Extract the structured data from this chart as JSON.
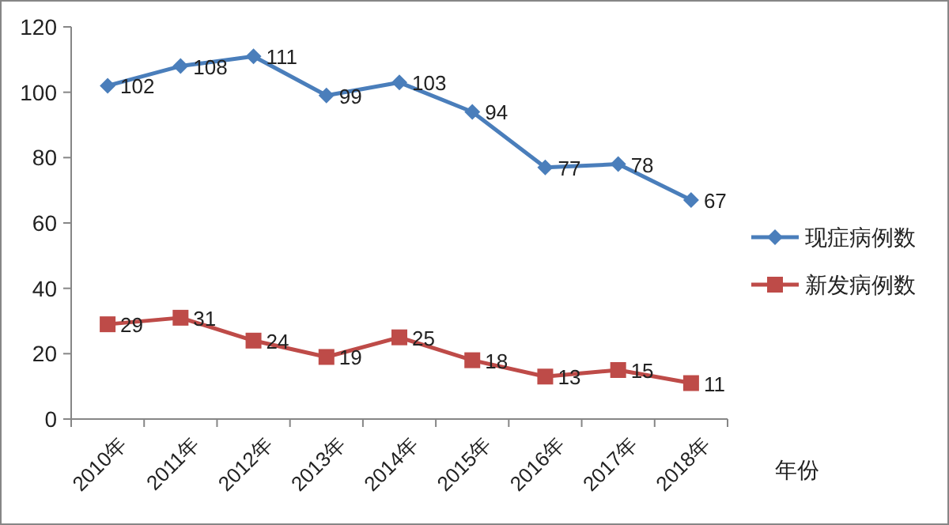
{
  "chart_data": {
    "type": "line",
    "xlabel": "年份",
    "categories": [
      "2010年",
      "2011年",
      "2012年",
      "2013年",
      "2014年",
      "2015年",
      "2016年",
      "2017年",
      "2018年"
    ],
    "series": [
      {
        "name": "现症病例数",
        "color": "#4a7ebb",
        "marker": "diamond",
        "values": [
          102,
          108,
          111,
          99,
          103,
          94,
          77,
          78,
          67
        ]
      },
      {
        "name": "新发病例数",
        "color": "#be4b48",
        "marker": "square",
        "values": [
          29,
          31,
          24,
          19,
          25,
          18,
          13,
          15,
          11
        ]
      }
    ],
    "ylim": [
      0,
      120
    ],
    "yticks": [
      0,
      20,
      40,
      60,
      80,
      100,
      120
    ],
    "grid": false,
    "legend": "right",
    "data_labels": true
  }
}
